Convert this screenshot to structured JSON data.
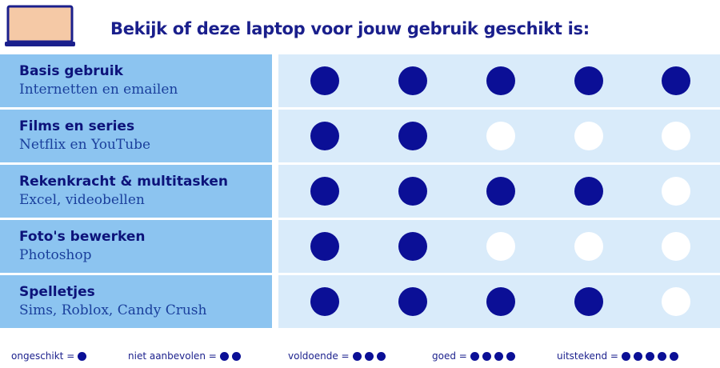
{
  "header": {
    "title": "Bekijk of deze laptop voor jouw gebruik geschikt is:",
    "icon": "laptop-icon"
  },
  "colors": {
    "dot_filled": "#0b0f96",
    "dot_empty": "#ffffff",
    "label_bg": "#8cc4f0",
    "dots_bg": "#d9ebfa",
    "title": "#1a1f8c"
  },
  "rows": [
    {
      "title": "Basis gebruik",
      "subtitle": "Internetten en emailen",
      "score": 5
    },
    {
      "title": "Films en series",
      "subtitle": "Netflix en YouTube",
      "score": 2
    },
    {
      "title": "Rekenkracht & multitasken",
      "subtitle": "Excel, videobellen",
      "score": 4
    },
    {
      "title": "Foto's bewerken",
      "subtitle": "Photoshop",
      "score": 2
    },
    {
      "title": "Spelletjes",
      "subtitle": "Sims, Roblox, Candy Crush",
      "score": 4
    }
  ],
  "legend": [
    {
      "label": "ongeschikt =",
      "dots": 1
    },
    {
      "label": "niet aanbevolen =",
      "dots": 2
    },
    {
      "label": "voldoende =",
      "dots": 3
    },
    {
      "label": "goed =",
      "dots": 4
    },
    {
      "label": "uitstekend =",
      "dots": 5
    }
  ]
}
